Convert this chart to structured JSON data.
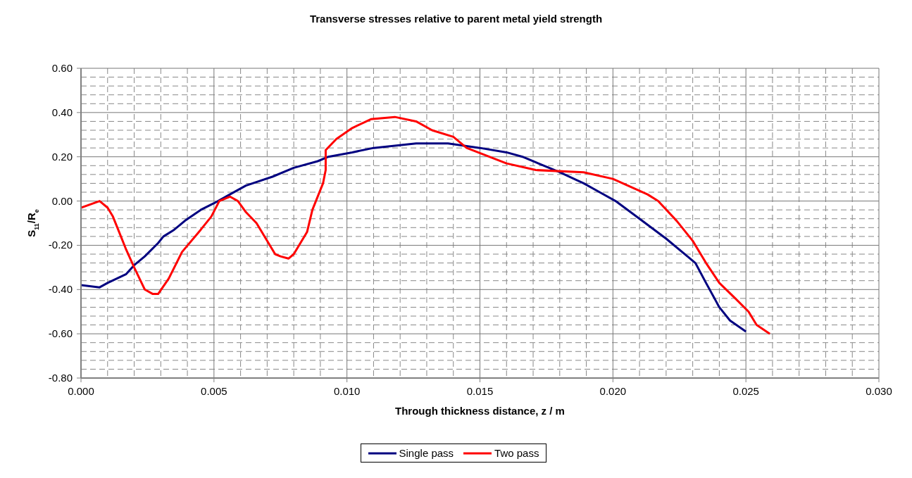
{
  "chart_data": {
    "type": "line",
    "title": "Transverse stresses relative to parent metal yield strength",
    "xlabel": "Through thickness distance, z / m",
    "ylabel": "S$_{11}$/R$_{e}$",
    "xlim": [
      0,
      0.03
    ],
    "ylim": [
      -0.8,
      0.6
    ],
    "xticks": [
      {
        "value": 0,
        "label": "0.000"
      },
      {
        "value": 0.001,
        "label": null
      },
      {
        "value": 0.002,
        "label": null
      },
      {
        "value": 0.003,
        "label": null
      },
      {
        "value": 0.004,
        "label": null
      },
      {
        "value": 0.005,
        "label": "0.005"
      },
      {
        "value": 0.006,
        "label": null
      },
      {
        "value": 0.007,
        "label": null
      },
      {
        "value": 0.008,
        "label": null
      },
      {
        "value": 0.009,
        "label": null
      },
      {
        "value": 0.01,
        "label": "0.010"
      },
      {
        "value": 0.011,
        "label": null
      },
      {
        "value": 0.012,
        "label": null
      },
      {
        "value": 0.013,
        "label": null
      },
      {
        "value": 0.014,
        "label": null
      },
      {
        "value": 0.015,
        "label": "0.015"
      },
      {
        "value": 0.016,
        "label": null
      },
      {
        "value": 0.017,
        "label": null
      },
      {
        "value": 0.018,
        "label": null
      },
      {
        "value": 0.019,
        "label": null
      },
      {
        "value": 0.02,
        "label": "0.020"
      },
      {
        "value": 0.021,
        "label": null
      },
      {
        "value": 0.022,
        "label": null
      },
      {
        "value": 0.023,
        "label": null
      },
      {
        "value": 0.024,
        "label": null
      },
      {
        "value": 0.025,
        "label": "0.025"
      },
      {
        "value": 0.026,
        "label": null
      },
      {
        "value": 0.027,
        "label": null
      },
      {
        "value": 0.028,
        "label": null
      },
      {
        "value": 0.029,
        "label": null
      },
      {
        "value": 0.03,
        "label": "0.030"
      }
    ],
    "yticks": [
      {
        "value": -0.8,
        "label": "-0.80"
      },
      {
        "value": -0.76,
        "label": null
      },
      {
        "value": -0.72,
        "label": null
      },
      {
        "value": -0.68,
        "label": null
      },
      {
        "value": -0.64,
        "label": null
      },
      {
        "value": -0.6,
        "label": "-0.60"
      },
      {
        "value": -0.56,
        "label": null
      },
      {
        "value": -0.52,
        "label": null
      },
      {
        "value": -0.48,
        "label": null
      },
      {
        "value": -0.44,
        "label": null
      },
      {
        "value": -0.4,
        "label": "-0.40"
      },
      {
        "value": -0.36,
        "label": null
      },
      {
        "value": -0.32,
        "label": null
      },
      {
        "value": -0.28,
        "label": null
      },
      {
        "value": -0.24,
        "label": null
      },
      {
        "value": -0.2,
        "label": "-0.20"
      },
      {
        "value": -0.16,
        "label": null
      },
      {
        "value": -0.12,
        "label": null
      },
      {
        "value": -0.08,
        "label": null
      },
      {
        "value": -0.04,
        "label": null
      },
      {
        "value": 0,
        "label": "0.00"
      },
      {
        "value": 0.04,
        "label": null
      },
      {
        "value": 0.08,
        "label": null
      },
      {
        "value": 0.12,
        "label": null
      },
      {
        "value": 0.16,
        "label": null
      },
      {
        "value": 0.2,
        "label": "0.20"
      },
      {
        "value": 0.24,
        "label": null
      },
      {
        "value": 0.28,
        "label": null
      },
      {
        "value": 0.32,
        "label": null
      },
      {
        "value": 0.36,
        "label": null
      },
      {
        "value": 0.4,
        "label": "0.40"
      },
      {
        "value": 0.44,
        "label": null
      },
      {
        "value": 0.48,
        "label": null
      },
      {
        "value": 0.52,
        "label": null
      },
      {
        "value": 0.56,
        "label": null
      },
      {
        "value": 0.6,
        "label": "0.60"
      }
    ],
    "grid": true,
    "legend": "bottom",
    "marker": "none",
    "line_style": "solid",
    "series": [
      {
        "name": "Single pass",
        "color": "#000080",
        "x": [
          0,
          0.0007,
          0.001,
          0.0017,
          0.002,
          0.0024,
          0.0029,
          0.0031,
          0.0035,
          0.0039,
          0.0045,
          0.005,
          0.0056,
          0.0062,
          0.0072,
          0.008,
          0.0089,
          0.0093,
          0.0102,
          0.011,
          0.0118,
          0.0126,
          0.0138,
          0.015,
          0.016,
          0.0166,
          0.018,
          0.0189,
          0.0195,
          0.0201,
          0.021,
          0.022,
          0.0228,
          0.0231,
          0.0235,
          0.024,
          0.0244,
          0.025
        ],
        "values": [
          -0.38,
          -0.39,
          -0.37,
          -0.33,
          -0.29,
          -0.25,
          -0.19,
          -0.16,
          -0.13,
          -0.09,
          -0.04,
          -0.01,
          0.03,
          0.07,
          0.11,
          0.15,
          0.18,
          0.2,
          0.22,
          0.24,
          0.25,
          0.26,
          0.26,
          0.24,
          0.22,
          0.2,
          0.13,
          0.08,
          0.04,
          0,
          -0.08,
          -0.17,
          -0.25,
          -0.28,
          -0.37,
          -0.48,
          -0.54,
          -0.59
        ]
      },
      {
        "name": "Two pass",
        "color": "#ff0000",
        "x": [
          0,
          0.0007,
          0.001,
          0.0012,
          0.0014,
          0.0017,
          0.002,
          0.0024,
          0.0027,
          0.0029,
          0.0033,
          0.0038,
          0.0045,
          0.0049,
          0.0052,
          0.0056,
          0.0059,
          0.0062,
          0.0066,
          0.0073,
          0.0075,
          0.0078,
          0.008,
          0.0085,
          0.0087,
          0.0091,
          0.0092,
          0.0092,
          0.0096,
          0.0102,
          0.0109,
          0.0118,
          0.0126,
          0.0132,
          0.014,
          0.0145,
          0.016,
          0.0171,
          0.0189,
          0.02,
          0.0213,
          0.0217,
          0.0224,
          0.023,
          0.0235,
          0.024,
          0.0246,
          0.0251,
          0.0254,
          0.0259
        ],
        "values": [
          -0.03,
          0,
          -0.03,
          -0.07,
          -0.13,
          -0.22,
          -0.3,
          -0.4,
          -0.42,
          -0.42,
          -0.35,
          -0.23,
          -0.13,
          -0.07,
          0,
          0.02,
          0,
          -0.05,
          -0.1,
          -0.24,
          -0.25,
          -0.26,
          -0.24,
          -0.14,
          -0.04,
          0.08,
          0.14,
          0.23,
          0.28,
          0.33,
          0.37,
          0.38,
          0.36,
          0.32,
          0.29,
          0.24,
          0.17,
          0.14,
          0.13,
          0.1,
          0.03,
          0,
          -0.09,
          -0.18,
          -0.28,
          -0.37,
          -0.44,
          -0.5,
          -0.56,
          -0.6
        ]
      }
    ]
  }
}
